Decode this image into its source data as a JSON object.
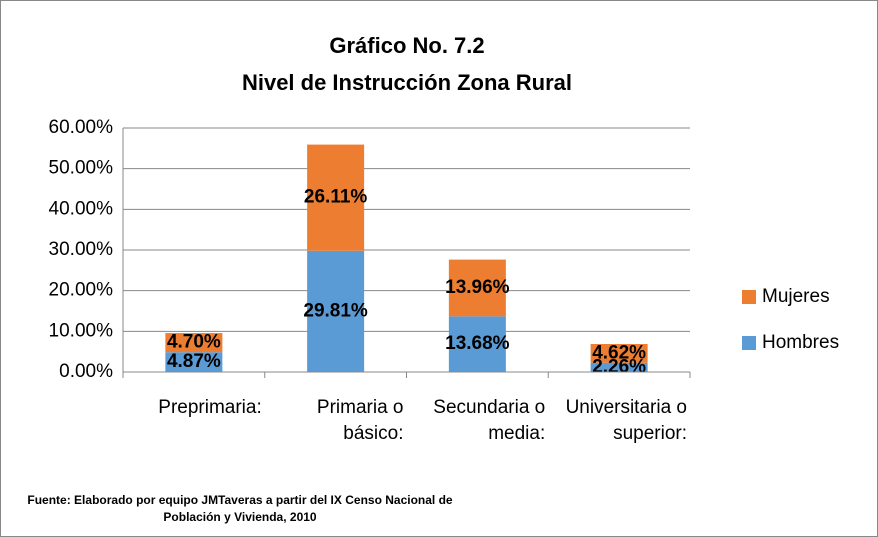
{
  "chart_data": {
    "type": "stacked_bar",
    "title": [
      "Gráfico No. 7.2",
      "Nivel de Instrucción Zona Rural"
    ],
    "categories": [
      "Preprimaria:",
      "Primaria o básico:",
      "Secundaria o media:",
      "Universitaria o superior:"
    ],
    "series": [
      {
        "name": "Hombres",
        "color": "#5b9bd5",
        "values": [
          4.87,
          29.81,
          13.68,
          2.26
        ],
        "value_labels": [
          "4.87%",
          "29.81%",
          "13.68%",
          "2.26%"
        ]
      },
      {
        "name": "Mujeres",
        "color": "#ed7d31",
        "values": [
          4.7,
          26.11,
          13.96,
          4.62
        ],
        "value_labels": [
          "4.70%",
          "26.11%",
          "13.96%",
          "4.62%"
        ]
      }
    ],
    "ylim": [
      0,
      60
    ],
    "yticks": [
      {
        "value": 0,
        "label": "0.00%"
      },
      {
        "value": 10,
        "label": "10.00%"
      },
      {
        "value": 20,
        "label": "20.00%"
      },
      {
        "value": 30,
        "label": "30.00%"
      },
      {
        "value": 40,
        "label": "40.00%"
      },
      {
        "value": 50,
        "label": "50.00%"
      },
      {
        "value": 60,
        "label": "60.00%"
      }
    ],
    "grid": true,
    "legend": "right",
    "source": "Fuente: Elaborado por equipo JMTaveras a partir del IX Censo Nacional de Población y Vivienda, 2010"
  }
}
